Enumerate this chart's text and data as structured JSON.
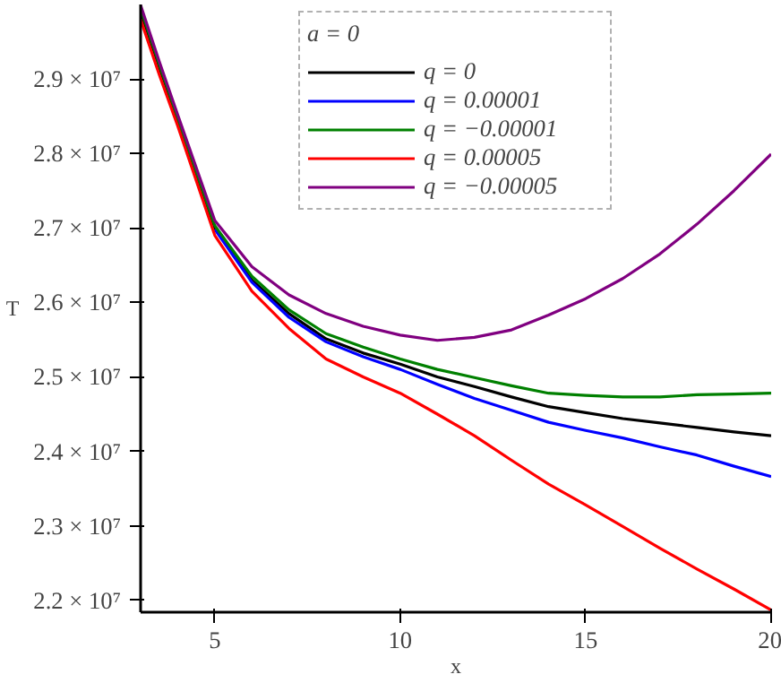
{
  "chart_data": {
    "type": "line",
    "xlabel": "x",
    "ylabel": "T",
    "legend_title": "a = 0",
    "legend": "top",
    "grid": false,
    "x": [
      3,
      3.5,
      4,
      5,
      6,
      7,
      8,
      9,
      10,
      11,
      12,
      13,
      14,
      15,
      16,
      17,
      18,
      19,
      20
    ],
    "xlim": [
      3,
      20
    ],
    "xticks": [
      5,
      10,
      15,
      20
    ],
    "ylim": [
      21840000,
      30000000
    ],
    "yticks": [
      {
        "value": 22000000,
        "label": "2.2 × 10⁷"
      },
      {
        "value": 23000000,
        "label": "2.3 × 10⁷"
      },
      {
        "value": 24000000,
        "label": "2.4 × 10⁷"
      },
      {
        "value": 25000000,
        "label": "2.5 × 10⁷"
      },
      {
        "value": 26000000,
        "label": "2.6 × 10⁷"
      },
      {
        "value": 27000000,
        "label": "2.7 × 10⁷"
      },
      {
        "value": 28000000,
        "label": "2.8 × 10⁷"
      },
      {
        "value": 29000000,
        "label": "2.9 × 10⁷"
      }
    ],
    "series": [
      {
        "name": "q = 0",
        "color": "#000000",
        "values": [
          29900000,
          29160000,
          28450000,
          27000000,
          26300000,
          25850000,
          25510000,
          25320000,
          25170000,
          25000000,
          24870000,
          24730000,
          24600000,
          24520000,
          24440000,
          24380000,
          24320000,
          24260000,
          24210000
        ]
      },
      {
        "name": "q = 0.00001",
        "color": "#0000ff",
        "values": [
          null,
          null,
          null,
          26980000,
          26270000,
          25800000,
          25470000,
          25270000,
          25100000,
          24900000,
          24710000,
          24550000,
          24390000,
          24280000,
          24180000,
          24060000,
          23950000,
          23800000,
          23660000
        ]
      },
      {
        "name": "q = −0.00001",
        "color": "#008000",
        "values": [
          29950000,
          29200000,
          28480000,
          27030000,
          26350000,
          25900000,
          25580000,
          25400000,
          25240000,
          25100000,
          24990000,
          24880000,
          24780000,
          24750000,
          24730000,
          24730000,
          24760000,
          24770000,
          24780000
        ]
      },
      {
        "name": "q = 0.00005",
        "color": "#ff0000",
        "values": [
          29800000,
          29060000,
          28370000,
          26900000,
          26150000,
          25650000,
          25240000,
          25000000,
          24780000,
          24500000,
          24210000,
          23880000,
          23560000,
          23280000,
          22990000,
          22700000,
          22420000,
          22150000,
          21870000
        ]
      },
      {
        "name": "q = −0.00005",
        "color": "#800080",
        "values": [
          29990000,
          29240000,
          28520000,
          27100000,
          26480000,
          26100000,
          25850000,
          25680000,
          25560000,
          25490000,
          25530000,
          25630000,
          25830000,
          26050000,
          26320000,
          26650000,
          27050000,
          27500000,
          27990000
        ]
      }
    ]
  }
}
